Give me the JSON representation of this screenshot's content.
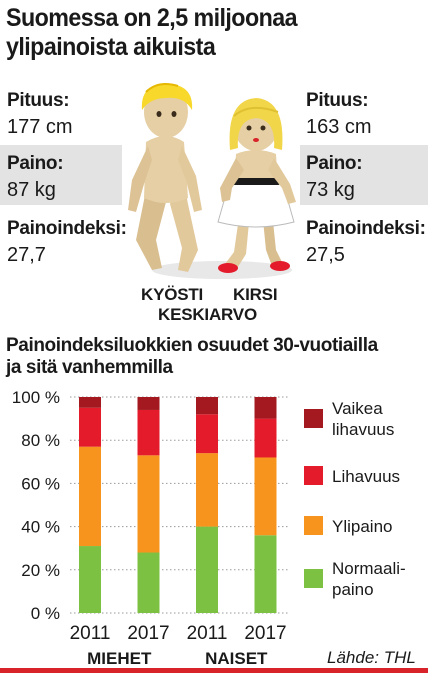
{
  "title_line1": "Suomessa on 2,5 miljoonaa",
  "title_line2": "ylipainoista aikuista",
  "male": {
    "height_label": "Pituus:",
    "height_value": "177 cm",
    "weight_label": "Paino:",
    "weight_value": "87 kg",
    "bmi_label": "Painoindeksi:",
    "bmi_value": "27,7",
    "name": "KYÖSTI"
  },
  "female": {
    "height_label": "Pituus:",
    "height_value": "163 cm",
    "weight_label": "Paino:",
    "weight_value": "73 kg",
    "bmi_label": "Painoindeksi:",
    "bmi_value": "27,5",
    "name": "KIRSI"
  },
  "figures_caption": "KESKIARVO",
  "source": "Lähde: THL",
  "colors": {
    "accent": "#d9232a",
    "grey_band": "#e3e3e3",
    "normal": "#7cc142",
    "overweight": "#f7941d",
    "obese": "#e31b2b",
    "severe": "#a3191f",
    "male_hair": "#f7d82b",
    "female_hair": "#f2d64a",
    "skin": "#e6cfa4"
  },
  "chart_data": {
    "type": "bar",
    "stacked": true,
    "title": "Painoindeksiluokkien osuudet 30-vuotiailla ja sitä vanhemmilla",
    "title_line1": "Painoindeksiluokkien osuudet 30-vuotiailla",
    "title_line2": "ja sitä vanhemmilla",
    "categories": [
      "2011",
      "2017",
      "2011",
      "2017"
    ],
    "groups": [
      {
        "label": "MIEHET",
        "categories": [
          "2011",
          "2017"
        ]
      },
      {
        "label": "NAISET",
        "categories": [
          "2011",
          "2017"
        ]
      }
    ],
    "series": [
      {
        "name": "Normaalipaino",
        "name_line1": "Normaali-",
        "name_line2": "paino",
        "color": "#7cc142",
        "values": [
          31,
          28,
          40,
          36
        ]
      },
      {
        "name": "Ylipaino",
        "color": "#f7941d",
        "values": [
          46,
          45,
          34,
          36
        ]
      },
      {
        "name": "Lihavuus",
        "color": "#e31b2b",
        "values": [
          18,
          21,
          18,
          18
        ]
      },
      {
        "name": "Vaikea lihavuus",
        "name_line1": "Vaikea",
        "name_line2": "lihavuus",
        "color": "#a3191f",
        "values": [
          5,
          6,
          8,
          10
        ]
      }
    ],
    "yticks": [
      "0 %",
      "20 %",
      "40 %",
      "60 %",
      "80 %",
      "100 %"
    ],
    "ylim": [
      0,
      100
    ],
    "grid": true,
    "legend_position": "right"
  }
}
